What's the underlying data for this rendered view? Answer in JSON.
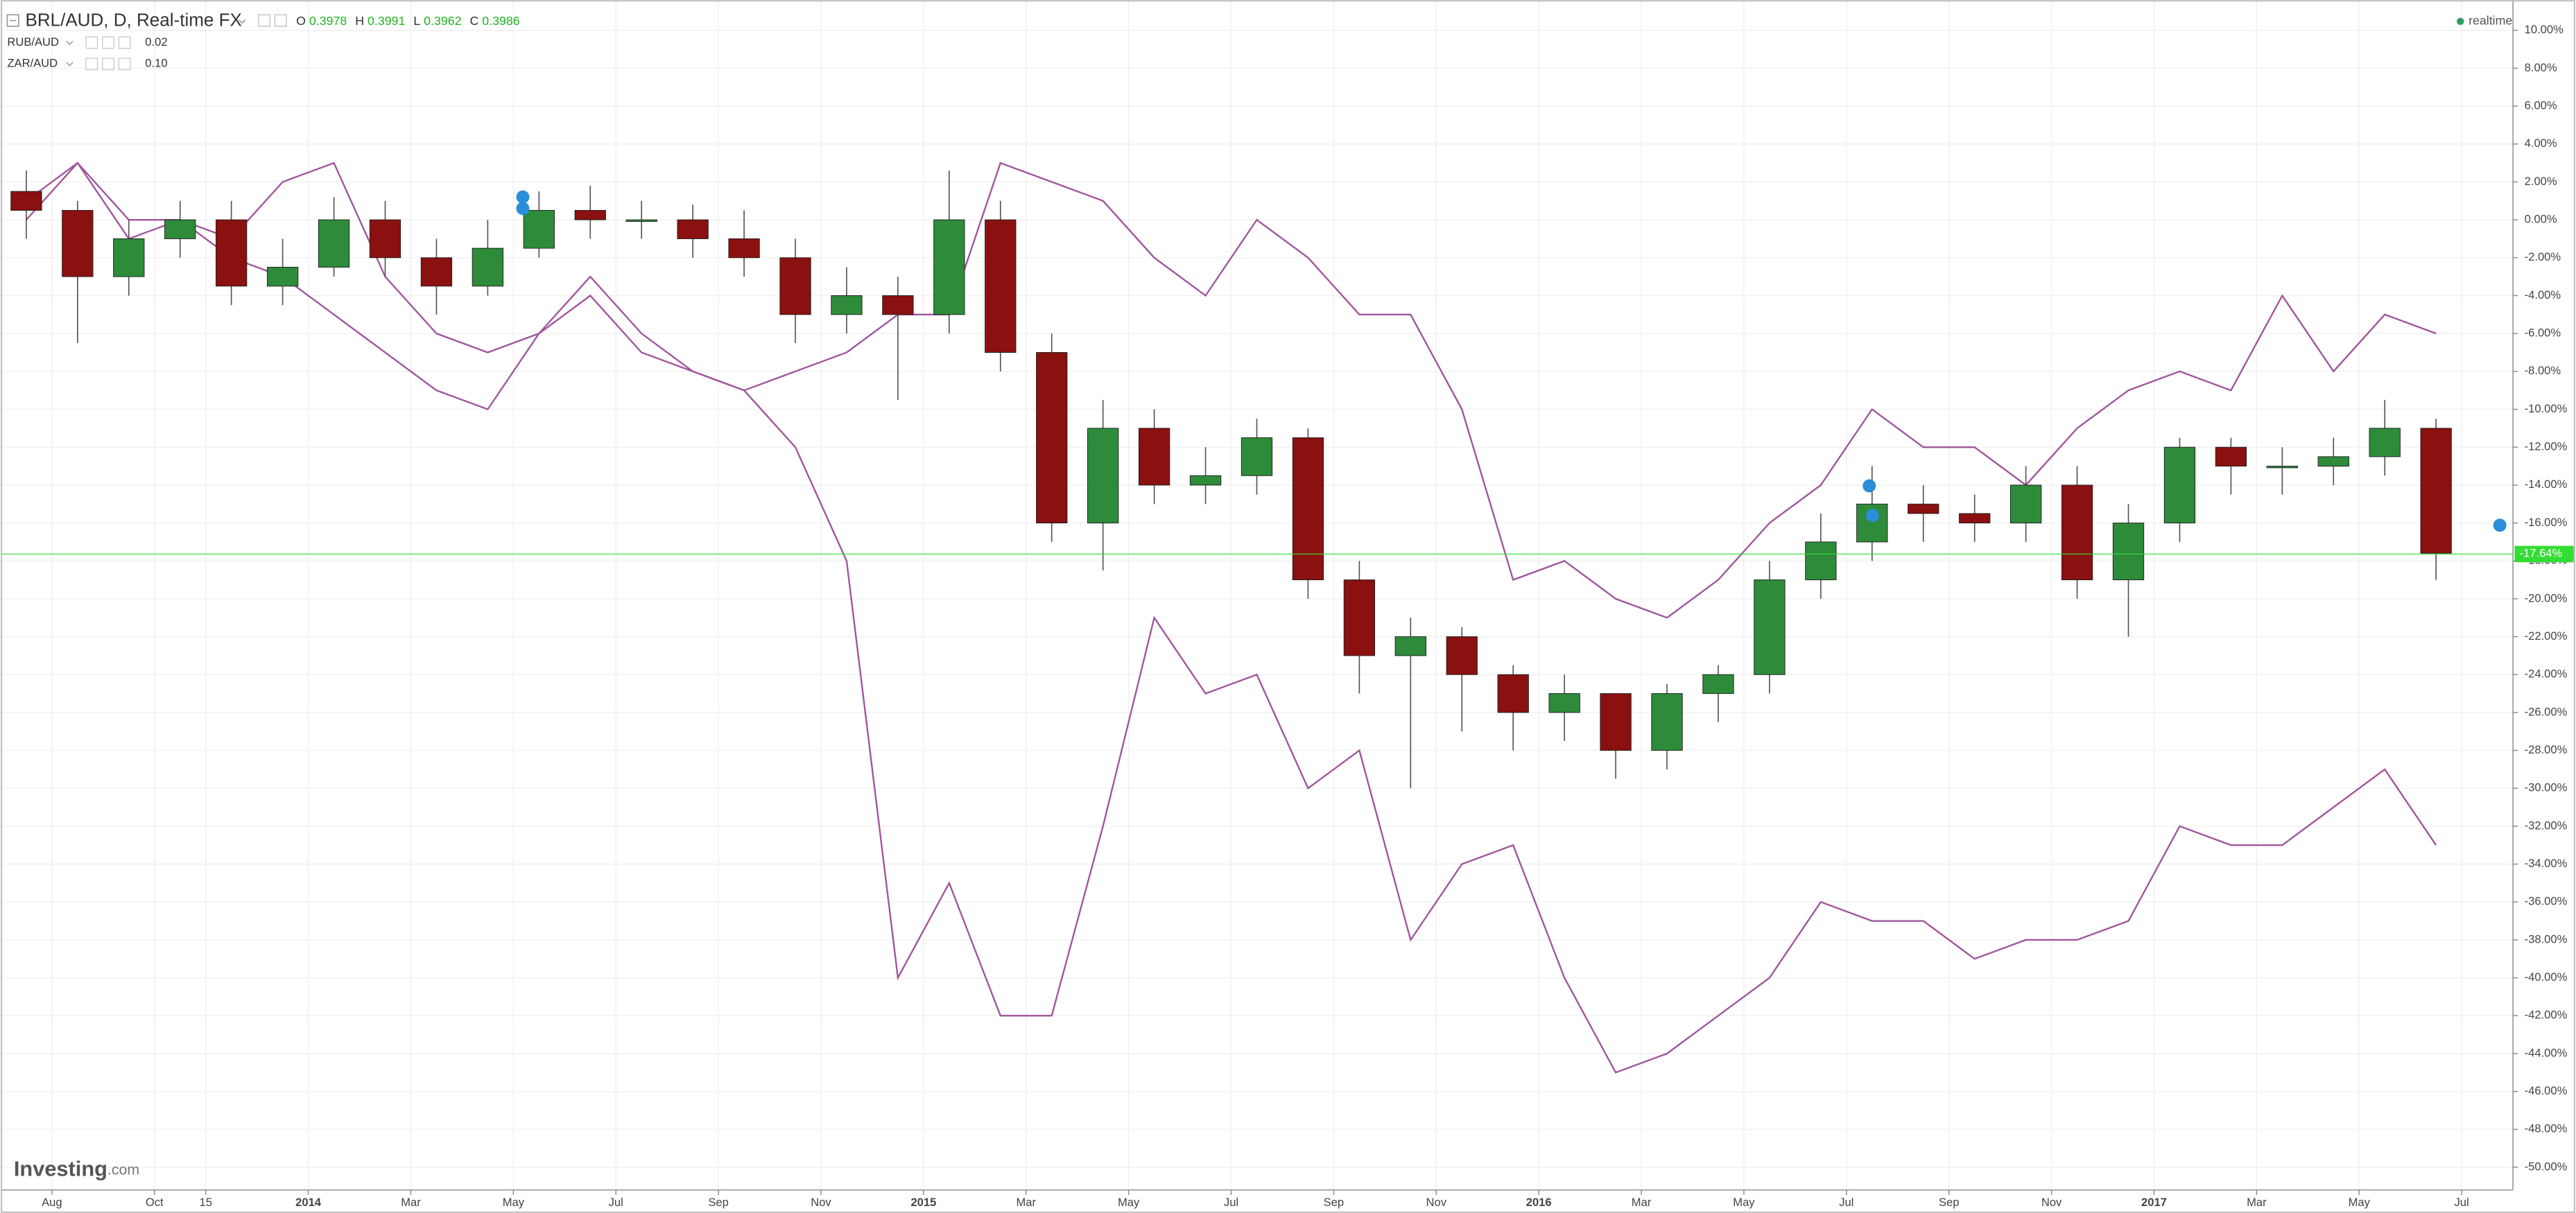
{
  "header": {
    "title": "BRL/AUD, D, Real-time FX",
    "ohlc": [
      {
        "label": "O",
        "value": "0.3978"
      },
      {
        "label": "H",
        "value": "0.3991"
      },
      {
        "label": "L",
        "value": "0.3962"
      },
      {
        "label": "C",
        "value": "0.3986"
      }
    ],
    "status": "realtime",
    "logo": {
      "name": "Investing",
      "suffix": ".com"
    }
  },
  "chart_data": {
    "type": "candlestick",
    "name": "BRL/AUD",
    "x": [
      "2013-07",
      "2013-08",
      "2013-09",
      "2013-10",
      "2013-11",
      "2013-12",
      "2014-01",
      "2014-02",
      "2014-03",
      "2014-04",
      "2014-05",
      "2014-06",
      "2014-07",
      "2014-08",
      "2014-09",
      "2014-10",
      "2014-11",
      "2014-12",
      "2015-01",
      "2015-02",
      "2015-03",
      "2015-04",
      "2015-05",
      "2015-06",
      "2015-07",
      "2015-08",
      "2015-09",
      "2015-10",
      "2015-11",
      "2015-12",
      "2016-01",
      "2016-02",
      "2016-03",
      "2016-04",
      "2016-05",
      "2016-06",
      "2016-07",
      "2016-08",
      "2016-09",
      "2016-10",
      "2016-11",
      "2016-12",
      "2017-01",
      "2017-02",
      "2017-03",
      "2017-04",
      "2017-05",
      "2017-06"
    ],
    "open": [
      1.5,
      0.5,
      -3,
      -1,
      0,
      -3.5,
      -2.5,
      0,
      -2,
      -3.5,
      -1.5,
      0.5,
      0,
      0,
      -1,
      -2,
      -5,
      -4,
      -5,
      0,
      -7,
      -16,
      -11,
      -14,
      -13.5,
      -11.5,
      -19,
      -23,
      -22,
      -24,
      -26,
      -25,
      -28,
      -25,
      -24,
      -19,
      -17,
      -15,
      -15.5,
      -16,
      -14,
      -19,
      -16,
      -12,
      -13,
      -13,
      -12.5,
      -11
    ],
    "high": [
      2.6,
      1,
      0,
      1,
      1,
      -1,
      1.2,
      1,
      -1,
      0,
      1.5,
      1.8,
      1,
      0.8,
      0.5,
      -1,
      -2.5,
      -3,
      2.6,
      1,
      -6,
      -9.5,
      -10,
      -12,
      -10.5,
      -11,
      -18,
      -21,
      -21.5,
      -23.5,
      -24,
      -25,
      -24.5,
      -23.5,
      -18,
      -15.5,
      -13,
      -14,
      -14.5,
      -13,
      -13,
      -15,
      -11.5,
      -11.5,
      -12,
      -11.5,
      -9.5,
      -10.5
    ],
    "low": [
      -1,
      -6.5,
      -4,
      -2,
      -4.5,
      -4.5,
      -3,
      -3,
      -5,
      -4,
      -2,
      -1,
      -1,
      -2,
      -3,
      -6.5,
      -6,
      -9.5,
      -6,
      -8,
      -17,
      -18.5,
      -15,
      -15,
      -14.5,
      -20,
      -25,
      -30,
      -27,
      -28,
      -27.5,
      -29.5,
      -29,
      -26.5,
      -25,
      -20,
      -18,
      -17,
      -17,
      -17,
      -20,
      -22,
      -17,
      -14.5,
      -14.5,
      -14,
      -13.5,
      -19
    ],
    "close": [
      0.5,
      -3,
      -1,
      0,
      -3.5,
      -2.5,
      0,
      -2,
      -3.5,
      -1.5,
      0.5,
      0,
      0,
      -1,
      -2,
      -5,
      -4,
      -5,
      0,
      -7,
      -16,
      -11,
      -14,
      -13.5,
      -11.5,
      -19,
      -23,
      -22,
      -24,
      -26,
      -25,
      -28,
      -25,
      -24,
      -19,
      -17,
      -15,
      -15.5,
      -16,
      -14,
      -19,
      -16,
      -12,
      -13,
      -13,
      -12.5,
      -11,
      -17.6
    ],
    "up_color": "#2e8b3a",
    "down_color": "#8b1010",
    "last_value": -17.64,
    "last_label": "-17.64%",
    "last_color": "#33dd33",
    "series": [
      {
        "name": "RUB/AUD",
        "legend_value": "0.02",
        "color": "#a0559c",
        "values": [
          0,
          3,
          0,
          0,
          -2,
          -3,
          -5,
          -7,
          -9,
          -10,
          -6,
          -3,
          -6,
          -8,
          -9,
          -12,
          -18,
          -40,
          -35,
          -42,
          -42,
          -32,
          -21,
          -25,
          -24,
          -30,
          -28,
          -38,
          -34,
          -33,
          -40,
          -45,
          -44,
          -42,
          -40,
          -36,
          -37,
          -37,
          -39,
          -38,
          -38,
          -37,
          -32,
          -33,
          -33,
          -31,
          -29,
          -33
        ]
      },
      {
        "name": "ZAR/AUD",
        "legend_value": "0.10",
        "color": "#a0559c",
        "values": [
          1,
          3,
          -1,
          0,
          -1,
          2,
          3,
          -3,
          -6,
          -7,
          -6,
          -4,
          -7,
          -8,
          -9,
          -8,
          -7,
          -5,
          -5,
          3,
          2,
          1,
          -2,
          -4,
          0,
          -2,
          -5,
          -5,
          -10,
          -19,
          -18,
          -20,
          -21,
          -19,
          -16,
          -14,
          -10,
          -12,
          -12,
          -14,
          -11,
          -9,
          -8,
          -9,
          -4,
          -8,
          -5,
          -6
        ]
      }
    ],
    "xlim": [
      "2013-07",
      "2017-08"
    ],
    "xticks": [
      {
        "value": "2013-08",
        "label": "Aug"
      },
      {
        "value": "2013-10",
        "label": "Oct"
      },
      {
        "value": "2013-11",
        "label": "15"
      },
      {
        "value": "2014-01",
        "label": "2014"
      },
      {
        "value": "2014-03",
        "label": "Mar"
      },
      {
        "value": "2014-05",
        "label": "May"
      },
      {
        "value": "2014-07",
        "label": "Jul"
      },
      {
        "value": "2014-09",
        "label": "Sep"
      },
      {
        "value": "2014-11",
        "label": "Nov"
      },
      {
        "value": "2015-01",
        "label": "2015"
      },
      {
        "value": "2015-03",
        "label": "Mar"
      },
      {
        "value": "2015-05",
        "label": "May"
      },
      {
        "value": "2015-07",
        "label": "Jul"
      },
      {
        "value": "2015-09",
        "label": "Sep"
      },
      {
        "value": "2015-11",
        "label": "Nov"
      },
      {
        "value": "2016-01",
        "label": "2016"
      },
      {
        "value": "2016-03",
        "label": "Mar"
      },
      {
        "value": "2016-05",
        "label": "May"
      },
      {
        "value": "2016-07",
        "label": "Jul"
      },
      {
        "value": "2016-09",
        "label": "Sep"
      },
      {
        "value": "2016-11",
        "label": "Nov"
      },
      {
        "value": "2017-01",
        "label": "2017"
      },
      {
        "value": "2017-03",
        "label": "Mar"
      },
      {
        "value": "2017-05",
        "label": "May"
      },
      {
        "value": "2017-07",
        "label": "Jul"
      }
    ],
    "ylim": [
      -51.2,
      11.6
    ],
    "yticks": [
      {
        "value": 10,
        "label": "10.00%"
      },
      {
        "value": 8,
        "label": "8.00%"
      },
      {
        "value": 6,
        "label": "6.00%"
      },
      {
        "value": 4,
        "label": "4.00%"
      },
      {
        "value": 2,
        "label": "2.00%"
      },
      {
        "value": 0,
        "label": "0.00%"
      },
      {
        "value": -2,
        "label": "-2.00%"
      },
      {
        "value": -4,
        "label": "-4.00%"
      },
      {
        "value": -6,
        "label": "-6.00%"
      },
      {
        "value": -8,
        "label": "-8.00%"
      },
      {
        "value": -10,
        "label": "-10.00%"
      },
      {
        "value": -12,
        "label": "-12.00%"
      },
      {
        "value": -14,
        "label": "-14.00%"
      },
      {
        "value": -16,
        "label": "-16.00%"
      },
      {
        "value": -18,
        "label": "-18.00%"
      },
      {
        "value": -20,
        "label": "-20.00%"
      },
      {
        "value": -22,
        "label": "-22.00%"
      },
      {
        "value": -24,
        "label": "-24.00%"
      },
      {
        "value": -26,
        "label": "-26.00%"
      },
      {
        "value": -28,
        "label": "-28.00%"
      },
      {
        "value": -30,
        "label": "-30.00%"
      },
      {
        "value": -32,
        "label": "-32.00%"
      },
      {
        "value": -34,
        "label": "-34.00%"
      },
      {
        "value": -36,
        "label": "-36.00%"
      },
      {
        "value": -38,
        "label": "-38.00%"
      },
      {
        "value": -40,
        "label": "-40.00%"
      },
      {
        "value": -42,
        "label": "-42.00%"
      },
      {
        "value": -44,
        "label": "-44.00%"
      },
      {
        "value": -46,
        "label": "-46.00%"
      },
      {
        "value": -48,
        "label": "-48.00%"
      },
      {
        "value": -50,
        "label": "-50.00%"
      }
    ],
    "grid": true
  }
}
